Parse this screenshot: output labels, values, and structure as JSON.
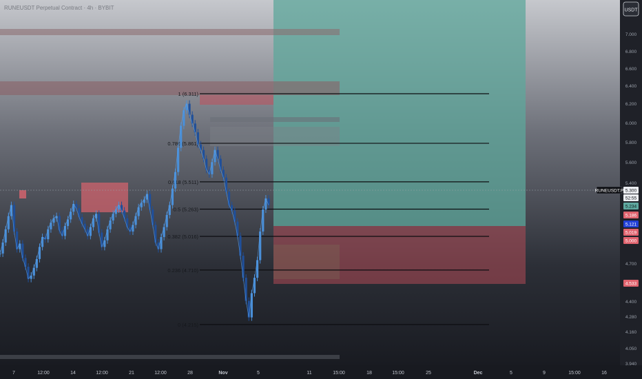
{
  "header": {
    "symbol_line": "RUNEUSDT Perpetual Contract · 4h · BYBIT"
  },
  "price_axis": {
    "currency_button": "USDT"
  },
  "price_tags": [
    {
      "label": "RUNEUSDT.P",
      "style": "dark"
    },
    {
      "label": "5.300",
      "style": "white"
    },
    {
      "label": "52:55",
      "style": "white"
    },
    {
      "label": "5.234",
      "style": "teal"
    },
    {
      "label": "5.186",
      "style": "red"
    },
    {
      "label": "5.121",
      "style": "blue"
    },
    {
      "label": "5.019",
      "style": "red"
    },
    {
      "label": "5.000",
      "style": "red"
    },
    {
      "label": "4.533",
      "style": "red"
    }
  ],
  "chart_data": {
    "type": "line",
    "title": "",
    "series": [
      {
        "name": "",
        "values": [
          4.86,
          4.96,
          5.08,
          5.2,
          5.3,
          5.06,
          4.9,
          4.95,
          4.82,
          4.74,
          4.63,
          4.66,
          4.73,
          4.81,
          4.92,
          5.01,
          4.99,
          5.08,
          5.14,
          5.18,
          5.2,
          5.07,
          5.02,
          5.11,
          5.17,
          5.24,
          5.31,
          5.27,
          5.19,
          5.13,
          5.08,
          5.02,
          5.1,
          5.18,
          5.22,
          5.05,
          4.92,
          4.98,
          5.08,
          5.16,
          5.22,
          5.26,
          5.3,
          5.25,
          5.18,
          5.1,
          5.06,
          5.12,
          5.2,
          5.28,
          5.32,
          5.35,
          5.4,
          5.26,
          5.12,
          4.96,
          4.9,
          5.01,
          5.1,
          5.21,
          5.3,
          5.45,
          5.6,
          5.82,
          6.02,
          6.16,
          6.22,
          6.12,
          6.04,
          5.96,
          5.85,
          5.8,
          5.72,
          5.62,
          5.58,
          5.69,
          5.8,
          5.72,
          5.62,
          5.55,
          5.42,
          5.3,
          5.25,
          5.15,
          5.02,
          4.84,
          4.64,
          4.43,
          4.28,
          4.5,
          4.64,
          4.8,
          5.06,
          5.26,
          5.36,
          5.3
        ]
      }
    ],
    "y_axis": {
      "side": "right",
      "ticks": [
        "7.000",
        "6.800",
        "6.600",
        "6.400",
        "6.200",
        "6.000",
        "5.800",
        "5.600",
        "5.400",
        "4.700",
        "4.560",
        "4.400",
        "4.280",
        "4.160",
        "4.050",
        "3.940"
      ]
    },
    "x_axis": {
      "ticks": [
        "7",
        "12:00",
        "14",
        "12:00",
        "21",
        "12:00",
        "28",
        "Nov",
        "5",
        "11",
        "15:00",
        "18",
        "15:00",
        "25",
        "Dec",
        "5",
        "9",
        "15:00",
        "16"
      ]
    },
    "fib_levels": [
      {
        "label": "1 (6.311)",
        "value": 6.311
      },
      {
        "label": "0.786 (5.861)",
        "value": 5.861
      },
      {
        "label": "0.618 (5.511)",
        "value": 5.511
      },
      {
        "label": "0.5 (5.263)",
        "value": 5.263
      },
      {
        "label": "0.382 (5.016)",
        "value": 5.016
      },
      {
        "label": "0.236 (4.710)",
        "value": 4.71
      },
      {
        "label": "0 (4.215)",
        "value": 4.215
      }
    ],
    "position_tool": {
      "type": "long",
      "entry": 5.3,
      "target": 7.0,
      "stop": 4.533
    },
    "grid": false,
    "legend": "none"
  }
}
